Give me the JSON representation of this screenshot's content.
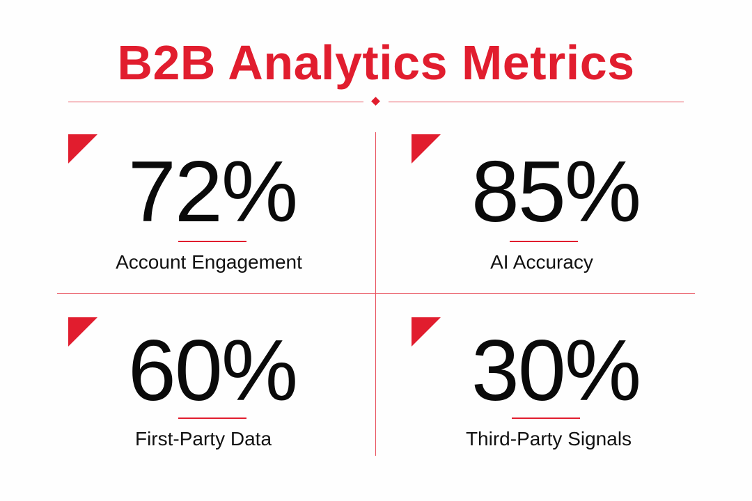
{
  "header": {
    "title": "B2B Analytics Metrics"
  },
  "colors": {
    "accent": "#e11d2e",
    "text": "#0a0a0a",
    "background": "#fefefe"
  },
  "metrics": [
    {
      "value": "72%",
      "label": "Account Engagement"
    },
    {
      "value": "85%",
      "label": "AI Accuracy"
    },
    {
      "value": "60%",
      "label": "First-Party Data"
    },
    {
      "value": "30%",
      "label": "Third-Party Signals"
    }
  ]
}
